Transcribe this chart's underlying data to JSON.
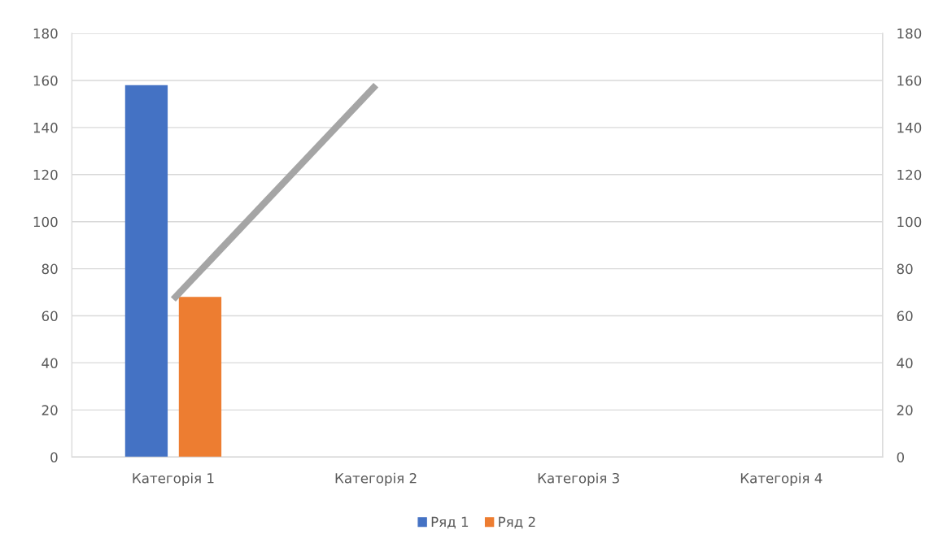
{
  "chart_data": {
    "type": "bar",
    "categories": [
      "Категорія 1",
      "Категорія 2",
      "Категорія 3",
      "Категорія 4"
    ],
    "series": [
      {
        "name": "Ряд 1",
        "color": "#4472c4",
        "values": [
          158,
          null,
          null,
          null
        ]
      },
      {
        "name": "Ряд 2",
        "color": "#ed7d31",
        "values": [
          68,
          null,
          null,
          null
        ]
      },
      {
        "type": "line",
        "color": "#a5a5a5",
        "values": [
          67,
          158,
          null,
          null
        ]
      }
    ],
    "ylim": [
      0,
      180
    ],
    "yticks": [
      0,
      20,
      40,
      60,
      80,
      100,
      120,
      140,
      160,
      180
    ],
    "y2lim": [
      0,
      180
    ],
    "y2ticks": [
      0,
      20,
      40,
      60,
      80,
      100,
      120,
      140,
      160,
      180
    ],
    "grid": "y",
    "legend": "bottom"
  }
}
